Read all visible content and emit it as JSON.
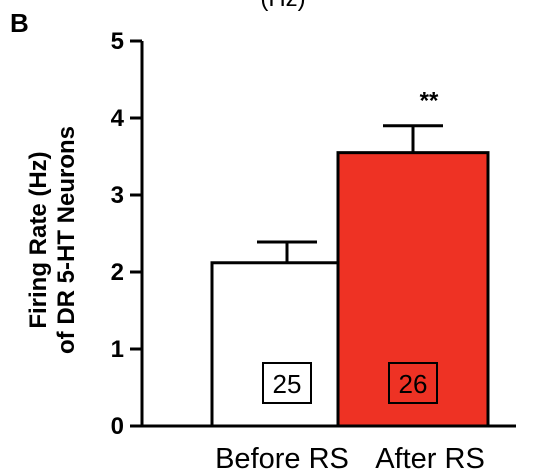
{
  "panel_label": "B",
  "top_cut_text": "(Hz)",
  "colors": {
    "before_fill": "#ffffff",
    "after_fill": "#ee3224",
    "stroke": "#000000"
  },
  "chart_data": {
    "type": "bar",
    "categories": [
      "Before RS",
      "After RS"
    ],
    "values": [
      2.12,
      3.55
    ],
    "errors": [
      0.27,
      0.35
    ],
    "n_labels": [
      "25",
      "26"
    ],
    "significance": [
      "",
      "**"
    ],
    "ylabel_line1": "Firing Rate (Hz)",
    "ylabel_line2": "of DR 5-HT Neurons",
    "ylim": [
      0,
      5
    ],
    "yticks": [
      "0",
      "1",
      "2",
      "3",
      "4",
      "5"
    ],
    "grid": false,
    "legend": "none"
  }
}
